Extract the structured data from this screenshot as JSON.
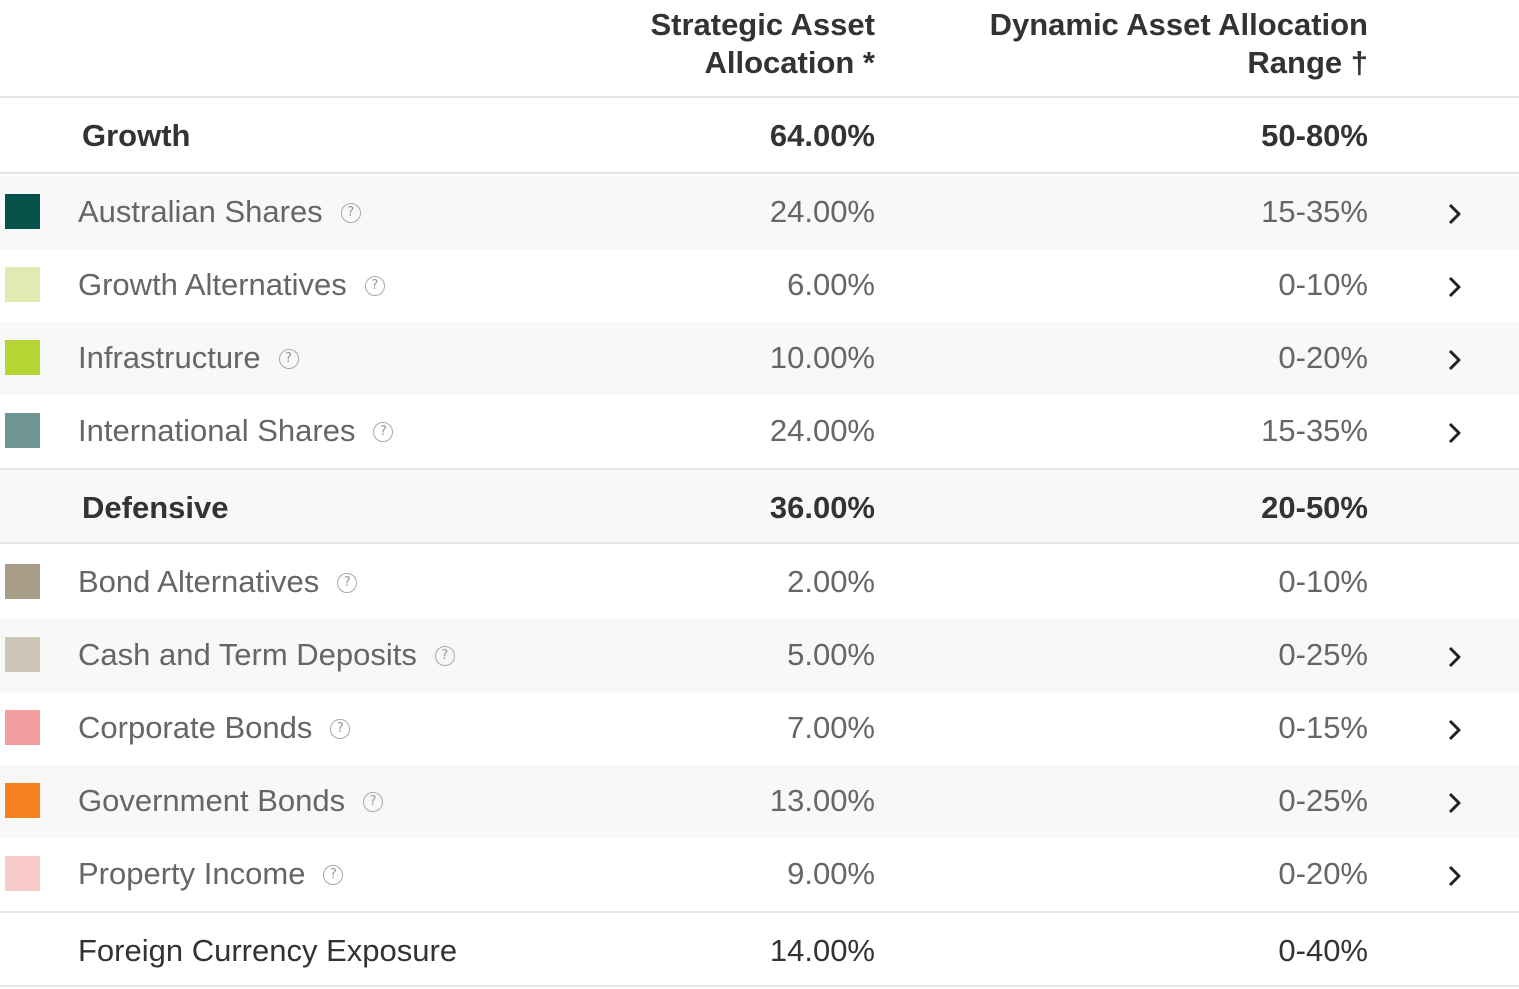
{
  "header": {
    "saa_line1": "Strategic Asset",
    "saa_line2": "Allocation *",
    "daa_line1": "Dynamic Asset Allocation",
    "daa_line2": "Range †"
  },
  "groups": {
    "growth": {
      "label": "Growth",
      "saa": "64.00%",
      "range": "50-80%"
    },
    "defensive": {
      "label": "Defensive",
      "saa": "36.00%",
      "range": "20-50%"
    }
  },
  "items": [
    {
      "label": "Australian Shares",
      "saa": "24.00%",
      "range": "15-35%",
      "color": "#06524a",
      "chevron": true
    },
    {
      "label": "Growth Alternatives",
      "saa": "6.00%",
      "range": "0-10%",
      "color": "#dfebb0",
      "chevron": true
    },
    {
      "label": "Infrastructure",
      "saa": "10.00%",
      "range": "0-20%",
      "color": "#b5d534",
      "chevron": true
    },
    {
      "label": "International Shares",
      "saa": "24.00%",
      "range": "15-35%",
      "color": "#6f9595",
      "chevron": true
    },
    {
      "label": "Bond Alternatives",
      "saa": "2.00%",
      "range": "0-10%",
      "color": "#a79d88",
      "chevron": false
    },
    {
      "label": "Cash and Term Deposits",
      "saa": "5.00%",
      "range": "0-25%",
      "color": "#ccc6b6",
      "chevron": true
    },
    {
      "label": "Corporate Bonds",
      "saa": "7.00%",
      "range": "0-15%",
      "color": "#f29d9e",
      "chevron": true
    },
    {
      "label": "Government Bonds",
      "saa": "13.00%",
      "range": "0-25%",
      "color": "#f5821f",
      "chevron": true
    },
    {
      "label": "Property Income",
      "saa": "9.00%",
      "range": "0-20%",
      "color": "#f8cbc8",
      "chevron": true
    }
  ],
  "total": {
    "label": "Foreign Currency Exposure",
    "saa": "14.00%",
    "range": "0-40%"
  },
  "icons": {
    "help": "help-circle-icon",
    "chevron": "chevron-right-icon"
  }
}
